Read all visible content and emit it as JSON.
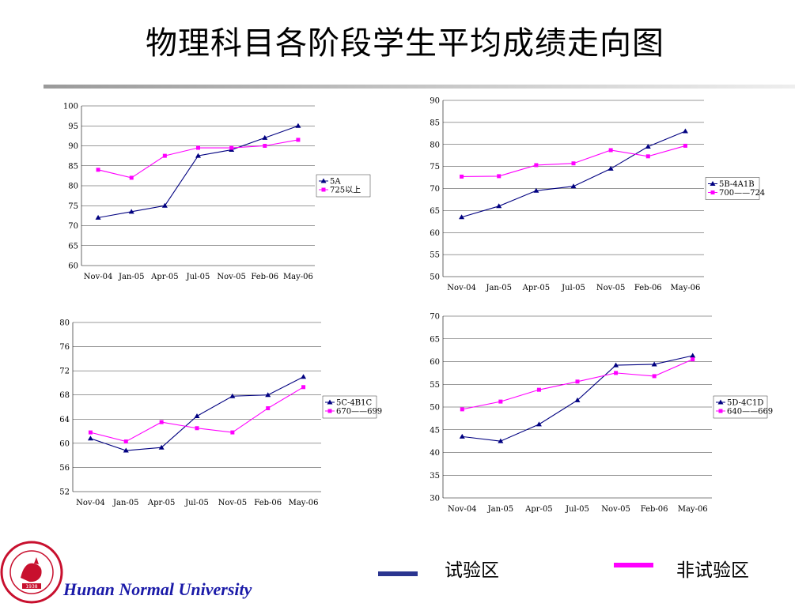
{
  "slide": {
    "title": "物理科目各阶段学生平均成绩走向图"
  },
  "legend": {
    "items": [
      {
        "label": "试验区",
        "color": "#2b3590"
      },
      {
        "label": "非试验区",
        "color": "#ff00ff"
      }
    ]
  },
  "footer": {
    "university": "Hunan Normal University",
    "logo_year": "1938"
  },
  "chart_data": [
    {
      "type": "line",
      "categories": [
        "Nov-04",
        "Jan-05",
        "Apr-05",
        "Jul-05",
        "Nov-05",
        "Feb-06",
        "May-06"
      ],
      "ylim": [
        60,
        100
      ],
      "yticks": [
        60,
        65,
        70,
        75,
        80,
        85,
        90,
        95,
        100
      ],
      "grid": true,
      "legend_position": "right",
      "series": [
        {
          "name": "5A",
          "color": "#000080",
          "marker": "triangle",
          "values": [
            72,
            73.5,
            75,
            87.5,
            89,
            92,
            95
          ]
        },
        {
          "name": "725以上",
          "color": "#ff00ff",
          "marker": "square",
          "values": [
            84,
            82,
            87.5,
            89.5,
            89.5,
            90,
            91.5
          ]
        }
      ]
    },
    {
      "type": "line",
      "categories": [
        "Nov-04",
        "Jan-05",
        "Apr-05",
        "Jul-05",
        "Nov-05",
        "Feb-06",
        "May-06"
      ],
      "ylim": [
        50,
        90
      ],
      "yticks": [
        50,
        55,
        60,
        65,
        70,
        75,
        80,
        85,
        90
      ],
      "grid": true,
      "legend_position": "right",
      "series": [
        {
          "name": "5B-4A1B",
          "color": "#000080",
          "marker": "triangle",
          "values": [
            63.5,
            66,
            69.5,
            70.5,
            74.5,
            79.5,
            83
          ]
        },
        {
          "name": "700——724",
          "color": "#ff00ff",
          "marker": "square",
          "values": [
            72.7,
            72.8,
            75.3,
            75.7,
            78.7,
            77.3,
            79.7
          ]
        }
      ]
    },
    {
      "type": "line",
      "categories": [
        "Nov-04",
        "Jan-05",
        "Apr-05",
        "Jul-05",
        "Nov-05",
        "Feb-06",
        "May-06"
      ],
      "ylim": [
        52,
        80
      ],
      "yticks": [
        52,
        56,
        60,
        64,
        68,
        72,
        76,
        80
      ],
      "grid": true,
      "legend_position": "right",
      "series": [
        {
          "name": "5C-4B1C",
          "color": "#000080",
          "marker": "triangle",
          "values": [
            60.8,
            58.8,
            59.3,
            64.5,
            67.8,
            68,
            71
          ]
        },
        {
          "name": "670——699",
          "color": "#ff00ff",
          "marker": "square",
          "values": [
            61.8,
            60.3,
            63.5,
            62.5,
            61.8,
            65.8,
            69.3
          ]
        }
      ]
    },
    {
      "type": "line",
      "categories": [
        "Nov-04",
        "Jan-05",
        "Apr-05",
        "Jul-05",
        "Nov-05",
        "Feb-06",
        "May-06"
      ],
      "ylim": [
        30,
        70
      ],
      "yticks": [
        30,
        35,
        40,
        45,
        50,
        55,
        60,
        65,
        70
      ],
      "grid": true,
      "legend_position": "right",
      "series": [
        {
          "name": "5D-4C1D",
          "color": "#000080",
          "marker": "triangle",
          "values": [
            43.5,
            42.5,
            46.2,
            51.5,
            59.2,
            59.4,
            61.3
          ]
        },
        {
          "name": "640——669",
          "color": "#ff00ff",
          "marker": "square",
          "values": [
            49.5,
            51.2,
            53.8,
            55.6,
            57.5,
            56.8,
            60.5
          ]
        }
      ]
    }
  ]
}
